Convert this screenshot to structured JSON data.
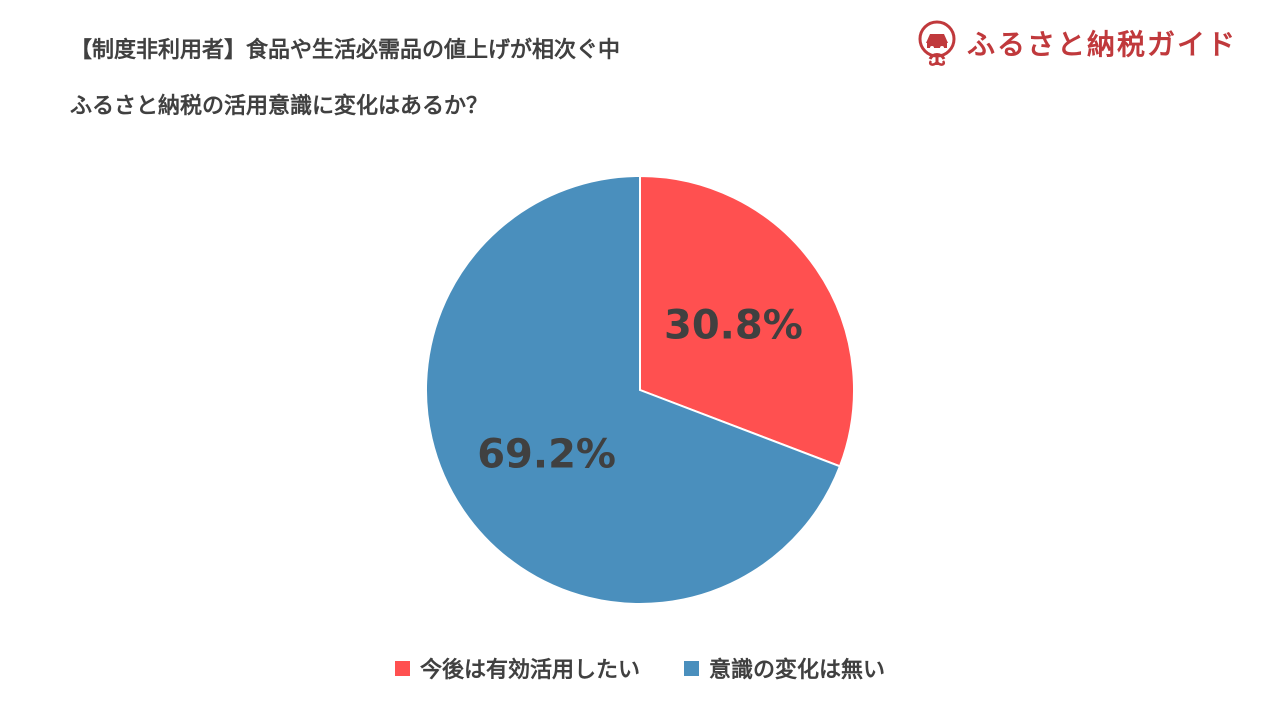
{
  "header": {
    "title_line1": "【制度非利用者】食品や生活必需品の値上げが相次ぐ中",
    "title_line2": "ふるさと納税の活用意識に変化はあるか？"
  },
  "brand": {
    "name": "ふるさと納税ガイド",
    "color": "#c0393c"
  },
  "chart_data": {
    "type": "pie",
    "title": "【制度非利用者】食品や生活必需品の値上げが相次ぐ中 ふるさと納税の活用意識に変化はあるか？",
    "categories": [
      "今後は有効活用したい",
      "意識の変化は無い"
    ],
    "values": [
      30.8,
      69.2
    ],
    "value_labels": [
      "30.8%",
      "69.2%"
    ],
    "colors": [
      "#ff5050",
      "#4a8fbd"
    ],
    "start_angle": "12 o'clock, clockwise",
    "legend_placement": "bottom",
    "legend": [
      "今後は有効活用したい",
      "意識の変化は無い"
    ]
  }
}
